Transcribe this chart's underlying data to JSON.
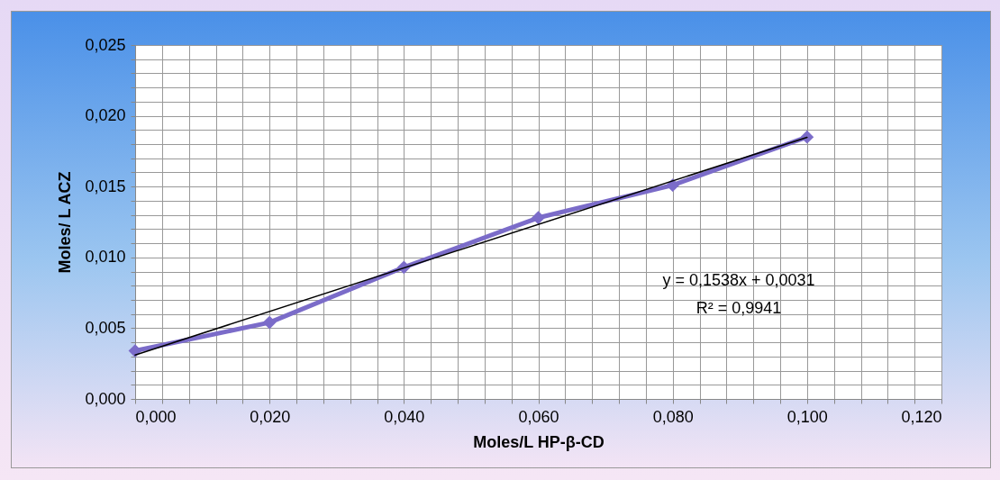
{
  "chart_data": {
    "type": "line",
    "xlabel": "Moles/L HP-β-CD",
    "ylabel": "Moles/ L ACZ",
    "x": [
      0,
      0.02,
      0.04,
      0.06,
      0.08,
      0.1
    ],
    "series": [
      {
        "color": "#7b6cc9",
        "values": [
          0.0034,
          0.0054,
          0.0093,
          0.0128,
          0.0151,
          0.0185
        ]
      },
      {
        "type": "line",
        "color": "#000000",
        "x": [
          0,
          0.1
        ],
        "values": [
          0.0031,
          0.01848
        ],
        "marker": "none"
      }
    ],
    "annotations": [
      "y = 0,1538x + 0,0031",
      "R² = 0,9941"
    ],
    "xlim": [
      0,
      0.12
    ],
    "ylim": [
      0,
      0.025
    ],
    "xticks": [
      {
        "value": 0,
        "label": "0,000"
      },
      {
        "value": 0.004,
        "label": null
      },
      {
        "value": 0.008,
        "label": null
      },
      {
        "value": 0.012,
        "label": null
      },
      {
        "value": 0.016,
        "label": null
      },
      {
        "value": 0.02,
        "label": "0,020"
      },
      {
        "value": 0.024,
        "label": null
      },
      {
        "value": 0.028,
        "label": null
      },
      {
        "value": 0.032,
        "label": null
      },
      {
        "value": 0.036,
        "label": null
      },
      {
        "value": 0.04,
        "label": "0,040"
      },
      {
        "value": 0.044,
        "label": null
      },
      {
        "value": 0.048,
        "label": null
      },
      {
        "value": 0.052,
        "label": null
      },
      {
        "value": 0.056,
        "label": null
      },
      {
        "value": 0.06,
        "label": "0,060"
      },
      {
        "value": 0.064,
        "label": null
      },
      {
        "value": 0.068,
        "label": null
      },
      {
        "value": 0.072,
        "label": null
      },
      {
        "value": 0.076,
        "label": null
      },
      {
        "value": 0.08,
        "label": "0,080"
      },
      {
        "value": 0.084,
        "label": null
      },
      {
        "value": 0.088,
        "label": null
      },
      {
        "value": 0.092,
        "label": null
      },
      {
        "value": 0.096,
        "label": null
      },
      {
        "value": 0.1,
        "label": "0,100"
      },
      {
        "value": 0.104,
        "label": null
      },
      {
        "value": 0.108,
        "label": null
      },
      {
        "value": 0.112,
        "label": null
      },
      {
        "value": 0.116,
        "label": null
      },
      {
        "value": 0.12,
        "label": "0,120"
      }
    ],
    "yticks": [
      {
        "value": 0,
        "label": "0,000"
      },
      {
        "value": 0.001,
        "label": null
      },
      {
        "value": 0.002,
        "label": null
      },
      {
        "value": 0.003,
        "label": null
      },
      {
        "value": 0.004,
        "label": null
      },
      {
        "value": 0.005,
        "label": "0,005"
      },
      {
        "value": 0.006,
        "label": null
      },
      {
        "value": 0.007,
        "label": null
      },
      {
        "value": 0.008,
        "label": null
      },
      {
        "value": 0.009,
        "label": null
      },
      {
        "value": 0.01,
        "label": "0,010"
      },
      {
        "value": 0.011,
        "label": null
      },
      {
        "value": 0.012,
        "label": null
      },
      {
        "value": 0.013,
        "label": null
      },
      {
        "value": 0.014,
        "label": null
      },
      {
        "value": 0.015,
        "label": "0,015"
      },
      {
        "value": 0.016,
        "label": null
      },
      {
        "value": 0.017,
        "label": null
      },
      {
        "value": 0.018,
        "label": null
      },
      {
        "value": 0.019,
        "label": null
      },
      {
        "value": 0.02,
        "label": "0,020"
      },
      {
        "value": 0.021,
        "label": null
      },
      {
        "value": 0.022,
        "label": null
      },
      {
        "value": 0.023,
        "label": null
      },
      {
        "value": 0.024,
        "label": null
      },
      {
        "value": 0.025,
        "label": "0,025"
      }
    ],
    "grid": true,
    "legend": false,
    "marker": "diamond",
    "line_style": "solid"
  }
}
